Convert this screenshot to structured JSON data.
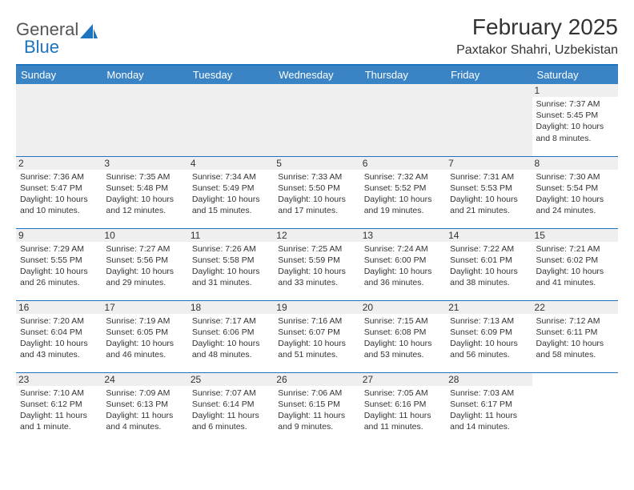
{
  "brand": {
    "part1": "General",
    "part2": "Blue"
  },
  "title": "February 2025",
  "location": "Paxtakor Shahri, Uzbekistan",
  "colors": {
    "header_bg": "#3a84c5",
    "accent": "#1e73be",
    "blank_bg": "#efefef",
    "text": "#333333",
    "bg": "#ffffff"
  },
  "day_headers": [
    "Sunday",
    "Monday",
    "Tuesday",
    "Wednesday",
    "Thursday",
    "Friday",
    "Saturday"
  ],
  "first_row": {
    "day": "1",
    "sunrise": "Sunrise: 7:37 AM",
    "sunset": "Sunset: 5:45 PM",
    "daylight1": "Daylight: 10 hours",
    "daylight2": "and 8 minutes."
  },
  "weeks": [
    [
      {
        "n": "2",
        "sr": "Sunrise: 7:36 AM",
        "ss": "Sunset: 5:47 PM",
        "d1": "Daylight: 10 hours",
        "d2": "and 10 minutes."
      },
      {
        "n": "3",
        "sr": "Sunrise: 7:35 AM",
        "ss": "Sunset: 5:48 PM",
        "d1": "Daylight: 10 hours",
        "d2": "and 12 minutes."
      },
      {
        "n": "4",
        "sr": "Sunrise: 7:34 AM",
        "ss": "Sunset: 5:49 PM",
        "d1": "Daylight: 10 hours",
        "d2": "and 15 minutes."
      },
      {
        "n": "5",
        "sr": "Sunrise: 7:33 AM",
        "ss": "Sunset: 5:50 PM",
        "d1": "Daylight: 10 hours",
        "d2": "and 17 minutes."
      },
      {
        "n": "6",
        "sr": "Sunrise: 7:32 AM",
        "ss": "Sunset: 5:52 PM",
        "d1": "Daylight: 10 hours",
        "d2": "and 19 minutes."
      },
      {
        "n": "7",
        "sr": "Sunrise: 7:31 AM",
        "ss": "Sunset: 5:53 PM",
        "d1": "Daylight: 10 hours",
        "d2": "and 21 minutes."
      },
      {
        "n": "8",
        "sr": "Sunrise: 7:30 AM",
        "ss": "Sunset: 5:54 PM",
        "d1": "Daylight: 10 hours",
        "d2": "and 24 minutes."
      }
    ],
    [
      {
        "n": "9",
        "sr": "Sunrise: 7:29 AM",
        "ss": "Sunset: 5:55 PM",
        "d1": "Daylight: 10 hours",
        "d2": "and 26 minutes."
      },
      {
        "n": "10",
        "sr": "Sunrise: 7:27 AM",
        "ss": "Sunset: 5:56 PM",
        "d1": "Daylight: 10 hours",
        "d2": "and 29 minutes."
      },
      {
        "n": "11",
        "sr": "Sunrise: 7:26 AM",
        "ss": "Sunset: 5:58 PM",
        "d1": "Daylight: 10 hours",
        "d2": "and 31 minutes."
      },
      {
        "n": "12",
        "sr": "Sunrise: 7:25 AM",
        "ss": "Sunset: 5:59 PM",
        "d1": "Daylight: 10 hours",
        "d2": "and 33 minutes."
      },
      {
        "n": "13",
        "sr": "Sunrise: 7:24 AM",
        "ss": "Sunset: 6:00 PM",
        "d1": "Daylight: 10 hours",
        "d2": "and 36 minutes."
      },
      {
        "n": "14",
        "sr": "Sunrise: 7:22 AM",
        "ss": "Sunset: 6:01 PM",
        "d1": "Daylight: 10 hours",
        "d2": "and 38 minutes."
      },
      {
        "n": "15",
        "sr": "Sunrise: 7:21 AM",
        "ss": "Sunset: 6:02 PM",
        "d1": "Daylight: 10 hours",
        "d2": "and 41 minutes."
      }
    ],
    [
      {
        "n": "16",
        "sr": "Sunrise: 7:20 AM",
        "ss": "Sunset: 6:04 PM",
        "d1": "Daylight: 10 hours",
        "d2": "and 43 minutes."
      },
      {
        "n": "17",
        "sr": "Sunrise: 7:19 AM",
        "ss": "Sunset: 6:05 PM",
        "d1": "Daylight: 10 hours",
        "d2": "and 46 minutes."
      },
      {
        "n": "18",
        "sr": "Sunrise: 7:17 AM",
        "ss": "Sunset: 6:06 PM",
        "d1": "Daylight: 10 hours",
        "d2": "and 48 minutes."
      },
      {
        "n": "19",
        "sr": "Sunrise: 7:16 AM",
        "ss": "Sunset: 6:07 PM",
        "d1": "Daylight: 10 hours",
        "d2": "and 51 minutes."
      },
      {
        "n": "20",
        "sr": "Sunrise: 7:15 AM",
        "ss": "Sunset: 6:08 PM",
        "d1": "Daylight: 10 hours",
        "d2": "and 53 minutes."
      },
      {
        "n": "21",
        "sr": "Sunrise: 7:13 AM",
        "ss": "Sunset: 6:09 PM",
        "d1": "Daylight: 10 hours",
        "d2": "and 56 minutes."
      },
      {
        "n": "22",
        "sr": "Sunrise: 7:12 AM",
        "ss": "Sunset: 6:11 PM",
        "d1": "Daylight: 10 hours",
        "d2": "and 58 minutes."
      }
    ],
    [
      {
        "n": "23",
        "sr": "Sunrise: 7:10 AM",
        "ss": "Sunset: 6:12 PM",
        "d1": "Daylight: 11 hours",
        "d2": "and 1 minute."
      },
      {
        "n": "24",
        "sr": "Sunrise: 7:09 AM",
        "ss": "Sunset: 6:13 PM",
        "d1": "Daylight: 11 hours",
        "d2": "and 4 minutes."
      },
      {
        "n": "25",
        "sr": "Sunrise: 7:07 AM",
        "ss": "Sunset: 6:14 PM",
        "d1": "Daylight: 11 hours",
        "d2": "and 6 minutes."
      },
      {
        "n": "26",
        "sr": "Sunrise: 7:06 AM",
        "ss": "Sunset: 6:15 PM",
        "d1": "Daylight: 11 hours",
        "d2": "and 9 minutes."
      },
      {
        "n": "27",
        "sr": "Sunrise: 7:05 AM",
        "ss": "Sunset: 6:16 PM",
        "d1": "Daylight: 11 hours",
        "d2": "and 11 minutes."
      },
      {
        "n": "28",
        "sr": "Sunrise: 7:03 AM",
        "ss": "Sunset: 6:17 PM",
        "d1": "Daylight: 11 hours",
        "d2": "and 14 minutes."
      },
      null
    ]
  ]
}
